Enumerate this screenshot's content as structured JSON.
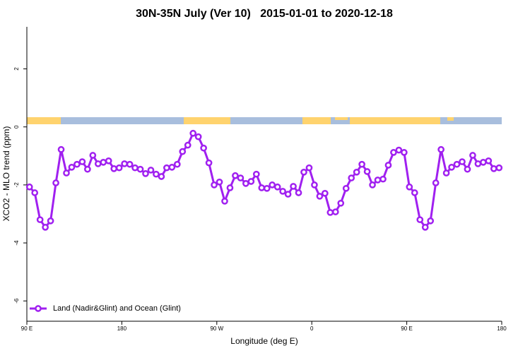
{
  "chart_data": {
    "type": "line",
    "title": "30N-35N July (Ver 10)   2015-01-01 to 2020-12-18",
    "x_label": "Longitude (deg E)",
    "y_label": "XCO2 - MLO trend (ppm)",
    "x": [
      92.5,
      97.5,
      102.5,
      107.5,
      112.5,
      117.5,
      122.5,
      127.5,
      132.5,
      137.5,
      142.5,
      147.5,
      152.5,
      157.5,
      162.5,
      167.5,
      172.5,
      177.5,
      182.5,
      187.5,
      192.5,
      197.5,
      202.5,
      207.5,
      212.5,
      217.5,
      222.5,
      227.5,
      232.5,
      237.5,
      242.5,
      247.5,
      252.5,
      257.5,
      262.5,
      267.5,
      272.5,
      277.5,
      282.5,
      287.5,
      292.5,
      297.5,
      302.5,
      307.5,
      312.5,
      317.5,
      322.5,
      327.5,
      332.5,
      337.5,
      342.5,
      347.5,
      352.5,
      357.5,
      362.5,
      367.5,
      372.5,
      377.5,
      382.5,
      387.5,
      392.5,
      397.5,
      402.5,
      407.5,
      412.5,
      417.5,
      422.5,
      427.5,
      432.5,
      437.5,
      442.5,
      447.5,
      452.5,
      457.5,
      462.5,
      467.5,
      472.5,
      477.5,
      482.5,
      487.5,
      492.5,
      497.5,
      502.5,
      507.5,
      512.5,
      517.5,
      522.5,
      527.5,
      532.5,
      537.5
    ],
    "series": [
      {
        "name": "Land (Nadir&Glint) and Ocean (Glint)",
        "color": "#a020f0",
        "values": [
          -2.07,
          -2.27,
          -3.2,
          -3.46,
          -3.24,
          -1.93,
          -0.78,
          -1.59,
          -1.39,
          -1.29,
          -1.2,
          -1.46,
          -0.98,
          -1.27,
          -1.22,
          -1.17,
          -1.44,
          -1.41,
          -1.27,
          -1.29,
          -1.41,
          -1.46,
          -1.61,
          -1.49,
          -1.63,
          -1.71,
          -1.41,
          -1.39,
          -1.29,
          -0.85,
          -0.63,
          -0.22,
          -0.34,
          -0.73,
          -1.24,
          -2.0,
          -1.9,
          -2.56,
          -2.1,
          -1.68,
          -1.76,
          -1.95,
          -1.88,
          -1.63,
          -2.1,
          -2.12,
          -2.0,
          -2.07,
          -2.22,
          -2.32,
          -2.05,
          -2.27,
          -1.56,
          -1.41,
          -2.0,
          -2.39,
          -2.29,
          -2.95,
          -2.93,
          -2.63,
          -2.12,
          -1.76,
          -1.56,
          -1.29,
          -1.54,
          -2.0,
          -1.83,
          -1.8,
          -1.32,
          -0.88,
          -0.8,
          -0.88,
          -2.07,
          -2.27,
          -3.2,
          -3.46,
          -3.24,
          -1.93,
          -0.78,
          -1.59,
          -1.39,
          -1.29,
          -1.2,
          -1.46,
          -0.98,
          -1.27,
          -1.22,
          -1.17,
          -1.44,
          -1.41
        ]
      }
    ],
    "xlim": [
      90,
      540
    ],
    "xticks": [
      {
        "value": 90,
        "label": "90 E"
      },
      180,
      {
        "value": 270,
        "label": "90 W"
      },
      {
        "value": 360,
        "label": "0"
      },
      {
        "value": 450,
        "label": "90 E"
      },
      {
        "value": 540,
        "label": "180"
      }
    ],
    "ylim": [
      -6.7,
      3.45
    ],
    "yticks": [
      -6,
      -4,
      -2,
      0,
      2
    ],
    "legend": "bottom-left"
  }
}
